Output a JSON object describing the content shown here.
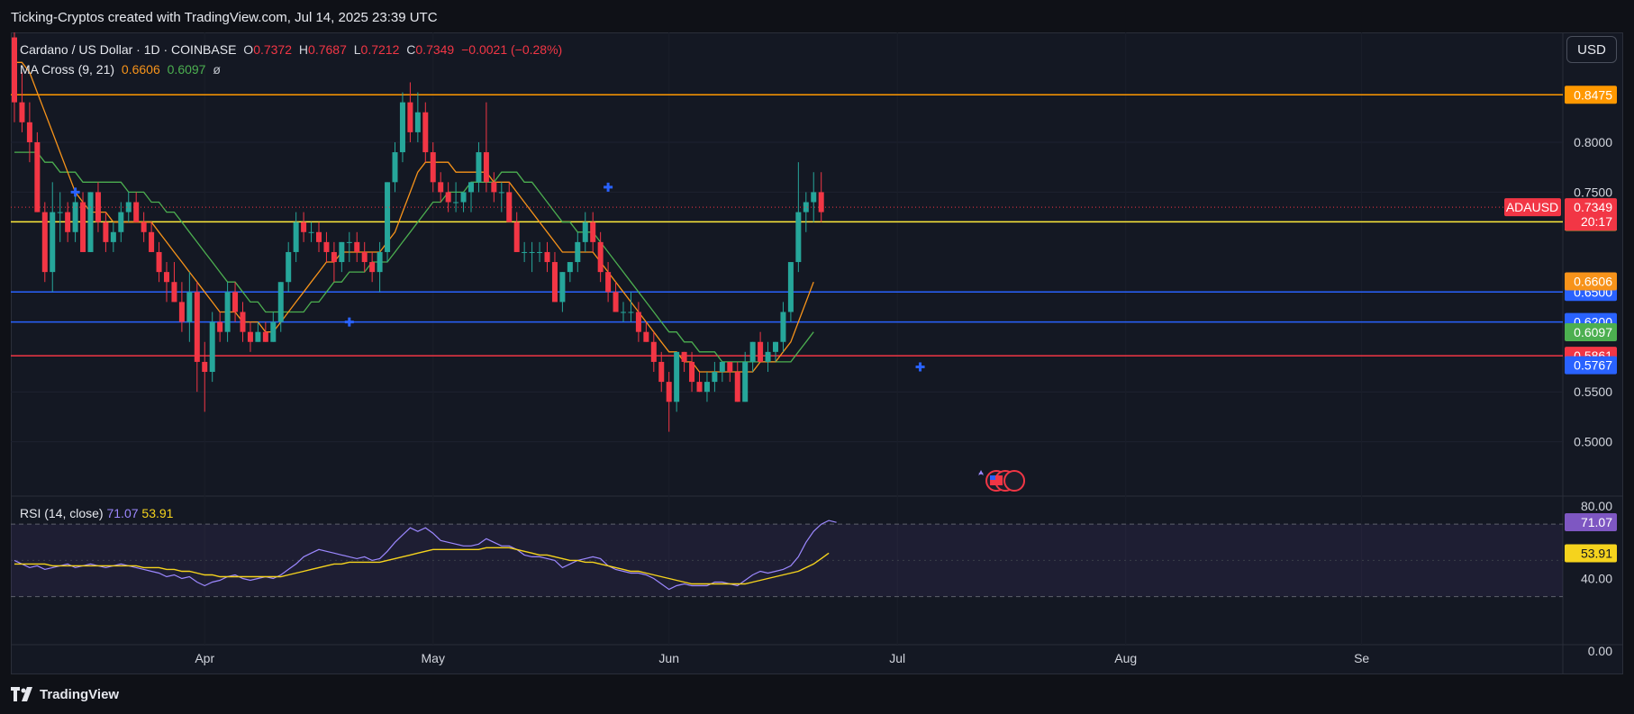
{
  "header": {
    "title": "Ticking-Cryptos created with TradingView.com, Jul 14, 2025 23:39 UTC"
  },
  "footer": {
    "brand": "TradingView"
  },
  "currency_button": "USD",
  "legend": {
    "symbol": "Cardano / US Dollar · 1D · COINBASE",
    "o_label": "O",
    "o_value": "0.7372",
    "h_label": "H",
    "h_value": "0.7687",
    "l_label": "L",
    "l_value": "0.7212",
    "c_label": "C",
    "c_value": "0.7349",
    "change": "−0.0021 (−0.28%)",
    "ma_label": "MA Cross (9, 21)",
    "ma_fast": "0.6606",
    "ma_slow": "0.6097",
    "ma_icon": "ø"
  },
  "rsi_legend": {
    "label": "RSI (14, close)",
    "rsi": "71.07",
    "ma": "53.91"
  },
  "colors": {
    "up": "#26a69a",
    "down": "#f23645",
    "ma_fast": "#f7931a",
    "ma_slow": "#4caf50",
    "rsi": "#9c88ff",
    "rsi_ma": "#f5d31d",
    "resistance": "#ff9800",
    "support_yellow": "#ffeb3b",
    "support_blue": "#2962ff",
    "support_red": "#f23645"
  },
  "icons": [
    "tradingview-logo-icon",
    "us-flag-event-icon",
    "cross-up-marker-icon"
  ],
  "chart_data": [
    {
      "type": "candlestick",
      "title": "Cardano / US Dollar · 1D · COINBASE",
      "xlabel": "",
      "ylabel": "",
      "ylim": [
        0.46,
        0.91
      ],
      "y_ticks": [
        "0.8000",
        "0.7500",
        "0.5500",
        "0.5000"
      ],
      "x_ticks": [
        "Apr",
        "May",
        "Jun",
        "Jul",
        "Aug",
        "Se"
      ],
      "last_price": {
        "label": "ADAUSD",
        "value": "0.7349",
        "countdown": "20:17"
      },
      "horizontal_levels": [
        {
          "value": 0.8475,
          "label": "0.8475",
          "color": "#ff9800"
        },
        {
          "value": 0.7203,
          "label": "0.7203",
          "color": "#ffeb3b"
        },
        {
          "value": 0.65,
          "label": "0.6500",
          "color": "#2962ff"
        },
        {
          "value": 0.62,
          "label": "0.6200",
          "color": "#2962ff"
        },
        {
          "value": 0.5861,
          "label": "0.5861",
          "color": "#f23645"
        }
      ],
      "price_badges": [
        {
          "value": 0.6606,
          "label": "0.6606",
          "color": "#f7931a"
        },
        {
          "value": 0.6097,
          "label": "0.6097",
          "color": "#4caf50"
        },
        {
          "value": 0.5767,
          "label": "0.5767",
          "color": "#2962ff"
        }
      ],
      "candles": [
        [
          0.905,
          0.91,
          0.82,
          0.84
        ],
        [
          0.84,
          0.87,
          0.81,
          0.82
        ],
        [
          0.82,
          0.84,
          0.78,
          0.8
        ],
        [
          0.8,
          0.81,
          0.73,
          0.73
        ],
        [
          0.73,
          0.74,
          0.66,
          0.67
        ],
        [
          0.67,
          0.76,
          0.65,
          0.73
        ],
        [
          0.73,
          0.75,
          0.7,
          0.73
        ],
        [
          0.73,
          0.74,
          0.7,
          0.71
        ],
        [
          0.71,
          0.75,
          0.7,
          0.74
        ],
        [
          0.74,
          0.75,
          0.69,
          0.69
        ],
        [
          0.69,
          0.75,
          0.69,
          0.75
        ],
        [
          0.75,
          0.76,
          0.71,
          0.72
        ],
        [
          0.72,
          0.73,
          0.69,
          0.7
        ],
        [
          0.7,
          0.72,
          0.69,
          0.71
        ],
        [
          0.71,
          0.74,
          0.7,
          0.73
        ],
        [
          0.73,
          0.75,
          0.72,
          0.74
        ],
        [
          0.74,
          0.75,
          0.72,
          0.72
        ],
        [
          0.72,
          0.73,
          0.7,
          0.71
        ],
        [
          0.71,
          0.72,
          0.69,
          0.69
        ],
        [
          0.69,
          0.7,
          0.66,
          0.67
        ],
        [
          0.67,
          0.68,
          0.64,
          0.66
        ],
        [
          0.66,
          0.68,
          0.64,
          0.64
        ],
        [
          0.64,
          0.66,
          0.61,
          0.62
        ],
        [
          0.62,
          0.67,
          0.6,
          0.65
        ],
        [
          0.65,
          0.66,
          0.55,
          0.58
        ],
        [
          0.58,
          0.6,
          0.53,
          0.57
        ],
        [
          0.57,
          0.63,
          0.56,
          0.62
        ],
        [
          0.62,
          0.63,
          0.6,
          0.61
        ],
        [
          0.61,
          0.66,
          0.6,
          0.65
        ],
        [
          0.65,
          0.66,
          0.62,
          0.63
        ],
        [
          0.63,
          0.64,
          0.6,
          0.61
        ],
        [
          0.61,
          0.62,
          0.59,
          0.6
        ],
        [
          0.6,
          0.62,
          0.6,
          0.61
        ],
        [
          0.61,
          0.62,
          0.6,
          0.6
        ],
        [
          0.6,
          0.63,
          0.6,
          0.62
        ],
        [
          0.62,
          0.66,
          0.61,
          0.66
        ],
        [
          0.66,
          0.7,
          0.65,
          0.69
        ],
        [
          0.69,
          0.73,
          0.68,
          0.72
        ],
        [
          0.72,
          0.73,
          0.7,
          0.71
        ],
        [
          0.71,
          0.72,
          0.7,
          0.71
        ],
        [
          0.71,
          0.72,
          0.69,
          0.7
        ],
        [
          0.7,
          0.71,
          0.68,
          0.69
        ],
        [
          0.69,
          0.7,
          0.66,
          0.68
        ],
        [
          0.68,
          0.7,
          0.67,
          0.7
        ],
        [
          0.7,
          0.71,
          0.68,
          0.7
        ],
        [
          0.7,
          0.71,
          0.68,
          0.69
        ],
        [
          0.69,
          0.7,
          0.67,
          0.68
        ],
        [
          0.68,
          0.69,
          0.66,
          0.67
        ],
        [
          0.67,
          0.7,
          0.65,
          0.69
        ],
        [
          0.69,
          0.76,
          0.68,
          0.76
        ],
        [
          0.76,
          0.8,
          0.75,
          0.79
        ],
        [
          0.79,
          0.85,
          0.78,
          0.84
        ],
        [
          0.84,
          0.86,
          0.8,
          0.81
        ],
        [
          0.81,
          0.85,
          0.8,
          0.83
        ],
        [
          0.83,
          0.84,
          0.78,
          0.79
        ],
        [
          0.79,
          0.8,
          0.75,
          0.76
        ],
        [
          0.76,
          0.77,
          0.74,
          0.75
        ],
        [
          0.75,
          0.76,
          0.73,
          0.74
        ],
        [
          0.74,
          0.76,
          0.73,
          0.74
        ],
        [
          0.74,
          0.75,
          0.73,
          0.75
        ],
        [
          0.75,
          0.76,
          0.73,
          0.76
        ],
        [
          0.76,
          0.8,
          0.75,
          0.79
        ],
        [
          0.79,
          0.84,
          0.75,
          0.76
        ],
        [
          0.76,
          0.77,
          0.74,
          0.75
        ],
        [
          0.75,
          0.76,
          0.73,
          0.75
        ],
        [
          0.75,
          0.76,
          0.72,
          0.72
        ],
        [
          0.72,
          0.73,
          0.69,
          0.69
        ],
        [
          0.69,
          0.7,
          0.68,
          0.69
        ],
        [
          0.69,
          0.7,
          0.67,
          0.69
        ],
        [
          0.69,
          0.7,
          0.68,
          0.69
        ],
        [
          0.69,
          0.7,
          0.67,
          0.68
        ],
        [
          0.68,
          0.69,
          0.64,
          0.64
        ],
        [
          0.64,
          0.67,
          0.63,
          0.67
        ],
        [
          0.67,
          0.68,
          0.66,
          0.68
        ],
        [
          0.68,
          0.71,
          0.67,
          0.7
        ],
        [
          0.7,
          0.73,
          0.69,
          0.72
        ],
        [
          0.72,
          0.73,
          0.69,
          0.7
        ],
        [
          0.7,
          0.71,
          0.66,
          0.67
        ],
        [
          0.67,
          0.68,
          0.64,
          0.65
        ],
        [
          0.65,
          0.66,
          0.63,
          0.63
        ],
        [
          0.63,
          0.64,
          0.62,
          0.63
        ],
        [
          0.63,
          0.65,
          0.62,
          0.63
        ],
        [
          0.63,
          0.64,
          0.6,
          0.61
        ],
        [
          0.61,
          0.62,
          0.6,
          0.6
        ],
        [
          0.6,
          0.61,
          0.57,
          0.58
        ],
        [
          0.58,
          0.59,
          0.55,
          0.56
        ],
        [
          0.56,
          0.57,
          0.51,
          0.54
        ],
        [
          0.54,
          0.59,
          0.53,
          0.59
        ],
        [
          0.59,
          0.59,
          0.57,
          0.58
        ],
        [
          0.58,
          0.59,
          0.55,
          0.56
        ],
        [
          0.56,
          0.57,
          0.55,
          0.55
        ],
        [
          0.55,
          0.57,
          0.54,
          0.56
        ],
        [
          0.56,
          0.58,
          0.55,
          0.57
        ],
        [
          0.57,
          0.58,
          0.56,
          0.58
        ],
        [
          0.58,
          0.58,
          0.56,
          0.57
        ],
        [
          0.57,
          0.58,
          0.54,
          0.54
        ],
        [
          0.54,
          0.59,
          0.54,
          0.58
        ],
        [
          0.58,
          0.6,
          0.57,
          0.6
        ],
        [
          0.6,
          0.61,
          0.58,
          0.58
        ],
        [
          0.58,
          0.6,
          0.57,
          0.59
        ],
        [
          0.59,
          0.6,
          0.58,
          0.6
        ],
        [
          0.6,
          0.64,
          0.59,
          0.63
        ],
        [
          0.63,
          0.68,
          0.62,
          0.68
        ],
        [
          0.68,
          0.78,
          0.67,
          0.73
        ],
        [
          0.73,
          0.75,
          0.71,
          0.74
        ],
        [
          0.74,
          0.77,
          0.72,
          0.75
        ],
        [
          0.75,
          0.77,
          0.72,
          0.73
        ]
      ],
      "series": [
        {
          "name": "MA Cross (9, 21)",
          "values": [
            0.88,
            0.88,
            0.87,
            0.85,
            0.83,
            0.81,
            0.79,
            0.77,
            0.75,
            0.74,
            0.73,
            0.73,
            0.73,
            0.72,
            0.72,
            0.72,
            0.72,
            0.72,
            0.72,
            0.71,
            0.7,
            0.69,
            0.68,
            0.67,
            0.66,
            0.65,
            0.64,
            0.63,
            0.63,
            0.63,
            0.62,
            0.62,
            0.62,
            0.61,
            0.61,
            0.62,
            0.63,
            0.64,
            0.65,
            0.66,
            0.67,
            0.68,
            0.68,
            0.69,
            0.69,
            0.69,
            0.69,
            0.69,
            0.69,
            0.7,
            0.71,
            0.73,
            0.75,
            0.77,
            0.78,
            0.78,
            0.78,
            0.78,
            0.77,
            0.77,
            0.77,
            0.77,
            0.77,
            0.76,
            0.76,
            0.76,
            0.75,
            0.74,
            0.73,
            0.72,
            0.71,
            0.7,
            0.69,
            0.69,
            0.69,
            0.69,
            0.69,
            0.68,
            0.67,
            0.66,
            0.65,
            0.64,
            0.63,
            0.62,
            0.61,
            0.6,
            0.59,
            0.59,
            0.58,
            0.58,
            0.57,
            0.57,
            0.57,
            0.57,
            0.57,
            0.57,
            0.57,
            0.57,
            0.58,
            0.58,
            0.58,
            0.59,
            0.6,
            0.62,
            0.64,
            0.66
          ]
        },
        {
          "name": "MA Cross (9, 21)",
          "values": [
            0.79,
            0.79,
            0.79,
            0.79,
            0.78,
            0.78,
            0.77,
            0.77,
            0.77,
            0.76,
            0.76,
            0.76,
            0.76,
            0.76,
            0.76,
            0.75,
            0.75,
            0.75,
            0.74,
            0.74,
            0.73,
            0.73,
            0.72,
            0.71,
            0.7,
            0.69,
            0.68,
            0.67,
            0.66,
            0.66,
            0.65,
            0.64,
            0.64,
            0.63,
            0.63,
            0.63,
            0.63,
            0.63,
            0.63,
            0.64,
            0.64,
            0.65,
            0.66,
            0.66,
            0.67,
            0.67,
            0.67,
            0.68,
            0.68,
            0.68,
            0.69,
            0.7,
            0.71,
            0.72,
            0.73,
            0.74,
            0.74,
            0.75,
            0.75,
            0.75,
            0.76,
            0.76,
            0.76,
            0.76,
            0.77,
            0.77,
            0.77,
            0.76,
            0.76,
            0.75,
            0.74,
            0.73,
            0.72,
            0.72,
            0.71,
            0.71,
            0.71,
            0.7,
            0.69,
            0.68,
            0.67,
            0.66,
            0.65,
            0.64,
            0.63,
            0.62,
            0.61,
            0.61,
            0.6,
            0.6,
            0.59,
            0.59,
            0.59,
            0.58,
            0.58,
            0.58,
            0.58,
            0.58,
            0.58,
            0.58,
            0.58,
            0.58,
            0.58,
            0.59,
            0.6,
            0.61
          ]
        }
      ]
    },
    {
      "type": "line",
      "title": "RSI (14, close)",
      "xlabel": "",
      "ylabel": "",
      "ylim": [
        -5,
        85
      ],
      "y_ticks": [
        "80.00",
        "40.00",
        "0.00"
      ],
      "band": [
        30,
        70
      ],
      "mid_line": 50,
      "last_values": {
        "rsi": "71.07",
        "ma": "53.91"
      },
      "series": [
        {
          "name": "RSI (14, close)",
          "values": [
            50,
            48,
            46,
            47,
            45,
            46,
            47,
            48,
            46,
            47,
            48,
            47,
            46,
            47,
            48,
            47,
            46,
            45,
            44,
            43,
            41,
            42,
            40,
            41,
            38,
            36,
            38,
            39,
            41,
            42,
            40,
            39,
            40,
            41,
            40,
            42,
            45,
            48,
            52,
            54,
            56,
            55,
            54,
            53,
            52,
            51,
            52,
            50,
            51,
            55,
            60,
            64,
            68,
            66,
            68,
            65,
            61,
            60,
            59,
            58,
            58,
            59,
            62,
            60,
            58,
            58,
            56,
            53,
            52,
            52,
            51,
            50,
            46,
            48,
            50,
            51,
            52,
            51,
            47,
            45,
            44,
            43,
            43,
            42,
            40,
            37,
            34,
            36,
            37,
            36,
            36,
            36,
            38,
            38,
            37,
            36,
            39,
            42,
            44,
            43,
            44,
            45,
            47,
            52,
            60,
            66,
            70,
            72,
            71
          ]
        },
        {
          "name": "RSI (14, close)",
          "values": [
            48,
            48,
            48,
            48,
            48,
            47,
            47,
            47,
            47,
            47,
            47,
            47,
            47,
            47,
            47,
            47,
            47,
            46,
            46,
            46,
            45,
            45,
            44,
            44,
            43,
            42,
            42,
            41,
            41,
            41,
            41,
            41,
            41,
            41,
            41,
            41,
            42,
            43,
            44,
            45,
            46,
            47,
            48,
            48,
            49,
            49,
            49,
            49,
            49,
            50,
            51,
            52,
            53,
            54,
            55,
            56,
            56,
            56,
            56,
            56,
            56,
            56,
            57,
            57,
            57,
            57,
            56,
            55,
            54,
            53,
            53,
            52,
            51,
            50,
            50,
            49,
            49,
            48,
            47,
            46,
            45,
            44,
            44,
            43,
            42,
            41,
            40,
            39,
            38,
            37,
            37,
            37,
            37,
            37,
            37,
            37,
            37,
            38,
            39,
            40,
            41,
            42,
            43,
            44,
            46,
            48,
            51,
            54
          ]
        }
      ]
    }
  ]
}
